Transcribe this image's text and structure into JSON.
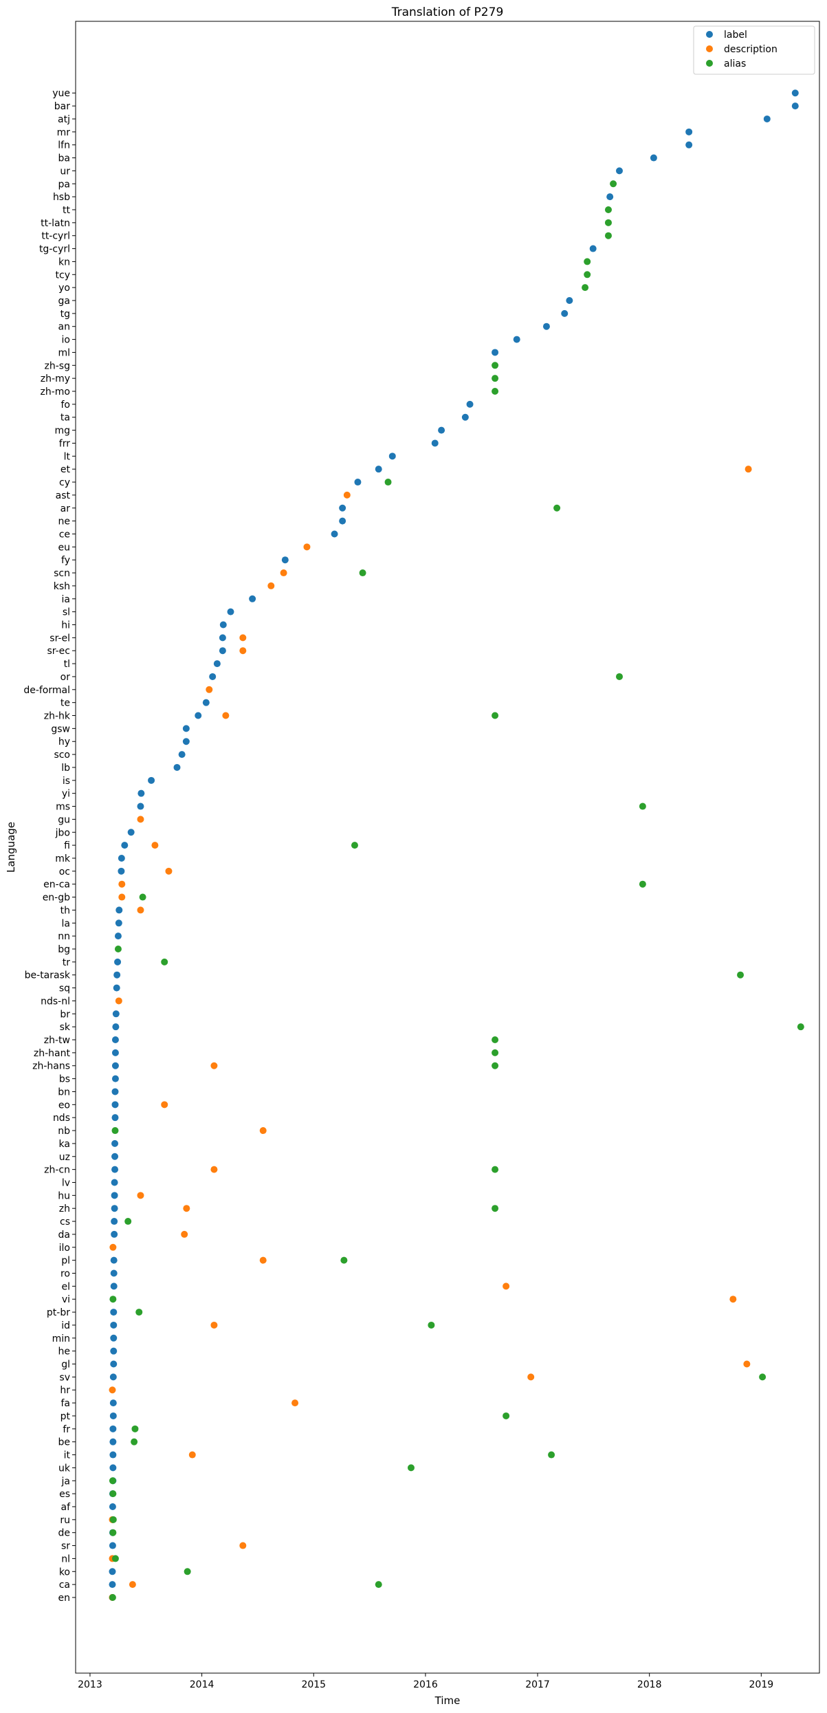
{
  "chart_data": {
    "type": "scatter",
    "title": "Translation of P279",
    "xlabel": "Time",
    "ylabel": "Language",
    "xlim": [
      "2012-11-15",
      "2019-07-10"
    ],
    "x_ticks": [
      "2013",
      "2014",
      "2015",
      "2016",
      "2017",
      "2018",
      "2019"
    ],
    "legend_position": "top-right",
    "grid": false,
    "categories": [
      "en",
      "ca",
      "ko",
      "nl",
      "sr",
      "de",
      "ru",
      "af",
      "es",
      "ja",
      "uk",
      "it",
      "be",
      "fr",
      "pt",
      "fa",
      "hr",
      "sv",
      "gl",
      "he",
      "min",
      "id",
      "pt-br",
      "vi",
      "el",
      "ro",
      "pl",
      "ilo",
      "da",
      "cs",
      "zh",
      "hu",
      "lv",
      "zh-cn",
      "uz",
      "ka",
      "nb",
      "nds",
      "eo",
      "bn",
      "bs",
      "zh-hans",
      "zh-hant",
      "zh-tw",
      "sk",
      "br",
      "nds-nl",
      "sq",
      "be-tarask",
      "tr",
      "bg",
      "nn",
      "la",
      "th",
      "en-gb",
      "en-ca",
      "oc",
      "mk",
      "fi",
      "jbo",
      "gu",
      "ms",
      "yi",
      "is",
      "lb",
      "sco",
      "hy",
      "gsw",
      "zh-hk",
      "te",
      "de-formal",
      "or",
      "tl",
      "sr-ec",
      "sr-el",
      "hi",
      "sl",
      "ia",
      "ksh",
      "scn",
      "fy",
      "eu",
      "ce",
      "ne",
      "ar",
      "ast",
      "cy",
      "et",
      "lt",
      "frr",
      "mg",
      "ta",
      "fo",
      "zh-mo",
      "zh-my",
      "zh-sg",
      "ml",
      "io",
      "an",
      "tg",
      "ga",
      "yo",
      "tcy",
      "kn",
      "tg-cyrl",
      "tt-cyrl",
      "tt-latn",
      "tt",
      "hsb",
      "pa",
      "ur",
      "ba",
      "lfn",
      "mr",
      "atj",
      "bar",
      "yue"
    ],
    "series": [
      {
        "name": "label",
        "color": "#1f77b4",
        "points": [
          [
            "2013-03-15",
            "en"
          ],
          [
            "2013-03-15",
            "ca"
          ],
          [
            "2013-03-15",
            "ko"
          ],
          [
            "2013-03-16",
            "sr"
          ],
          [
            "2013-03-16",
            "de"
          ],
          [
            "2013-03-16",
            "ru"
          ],
          [
            "2013-03-16",
            "af"
          ],
          [
            "2013-03-16",
            "es"
          ],
          [
            "2013-03-17",
            "ja"
          ],
          [
            "2013-03-17",
            "uk"
          ],
          [
            "2013-03-17",
            "it"
          ],
          [
            "2013-03-17",
            "be"
          ],
          [
            "2013-03-17",
            "fr"
          ],
          [
            "2013-03-18",
            "pt"
          ],
          [
            "2013-03-18",
            "fa"
          ],
          [
            "2013-03-18",
            "sv"
          ],
          [
            "2013-03-19",
            "gl"
          ],
          [
            "2013-03-19",
            "he"
          ],
          [
            "2013-03-19",
            "min"
          ],
          [
            "2013-03-19",
            "id"
          ],
          [
            "2013-03-19",
            "pt-br"
          ],
          [
            "2013-03-20",
            "el"
          ],
          [
            "2013-03-20",
            "ro"
          ],
          [
            "2013-03-20",
            "pl"
          ],
          [
            "2013-03-21",
            "da"
          ],
          [
            "2013-03-21",
            "cs"
          ],
          [
            "2013-03-22",
            "zh"
          ],
          [
            "2013-03-22",
            "hu"
          ],
          [
            "2013-03-22",
            "lv"
          ],
          [
            "2013-03-23",
            "zh-cn"
          ],
          [
            "2013-03-23",
            "uz"
          ],
          [
            "2013-03-23",
            "ka"
          ],
          [
            "2013-03-24",
            "nds"
          ],
          [
            "2013-03-24",
            "eo"
          ],
          [
            "2013-03-24",
            "bn"
          ],
          [
            "2013-03-25",
            "bs"
          ],
          [
            "2013-03-25",
            "zh-hans"
          ],
          [
            "2013-03-25",
            "zh-hant"
          ],
          [
            "2013-03-25",
            "zh-tw"
          ],
          [
            "2013-03-26",
            "sk"
          ],
          [
            "2013-03-27",
            "br"
          ],
          [
            "2013-03-29",
            "sq"
          ],
          [
            "2013-03-30",
            "be-tarask"
          ],
          [
            "2013-04-01",
            "tr"
          ],
          [
            "2013-04-03",
            "nn"
          ],
          [
            "2013-04-05",
            "la"
          ],
          [
            "2013-04-06",
            "th"
          ],
          [
            "2013-04-14",
            "mk"
          ],
          [
            "2013-04-13",
            "oc"
          ],
          [
            "2013-04-24",
            "fi"
          ],
          [
            "2013-05-15",
            "jbo"
          ],
          [
            "2013-06-15",
            "ms"
          ],
          [
            "2013-06-17",
            "yi"
          ],
          [
            "2013-07-20",
            "is"
          ],
          [
            "2013-10-12",
            "lb"
          ],
          [
            "2013-10-28",
            "sco"
          ],
          [
            "2013-11-11",
            "hy"
          ],
          [
            "2013-11-11",
            "gsw"
          ],
          [
            "2013-12-20",
            "zh-hk"
          ],
          [
            "2014-01-15",
            "te"
          ],
          [
            "2014-02-05",
            "or"
          ],
          [
            "2014-02-20",
            "tl"
          ],
          [
            "2014-03-10",
            "sr-ec"
          ],
          [
            "2014-03-10",
            "sr-el"
          ],
          [
            "2014-03-12",
            "hi"
          ],
          [
            "2014-04-05",
            "sl"
          ],
          [
            "2014-06-15",
            "ia"
          ],
          [
            "2014-09-30",
            "fy"
          ],
          [
            "2015-03-10",
            "ce"
          ],
          [
            "2015-04-05",
            "ne"
          ],
          [
            "2015-04-05",
            "ar"
          ],
          [
            "2015-05-25",
            "cy"
          ],
          [
            "2015-08-01",
            "et"
          ],
          [
            "2015-09-15",
            "lt"
          ],
          [
            "2016-02-01",
            "frr"
          ],
          [
            "2016-02-22",
            "mg"
          ],
          [
            "2016-05-10",
            "ta"
          ],
          [
            "2016-05-25",
            "fo"
          ],
          [
            "2016-08-15",
            "ml"
          ],
          [
            "2016-10-25",
            "io"
          ],
          [
            "2017-01-30",
            "an"
          ],
          [
            "2017-03-30",
            "tg"
          ],
          [
            "2017-04-15",
            "ga"
          ],
          [
            "2017-07-01",
            "tg-cyrl"
          ],
          [
            "2017-08-25",
            "hsb"
          ],
          [
            "2017-09-25",
            "ur"
          ],
          [
            "2018-01-15",
            "ba"
          ],
          [
            "2018-05-10",
            "lfn"
          ],
          [
            "2018-05-10",
            "mr"
          ],
          [
            "2019-01-20",
            "atj"
          ],
          [
            "2019-04-22",
            "bar"
          ],
          [
            "2019-04-22",
            "yue"
          ]
        ]
      },
      {
        "name": "description",
        "color": "#ff7f0e",
        "points": [
          [
            "2013-03-15",
            "en"
          ],
          [
            "2013-05-20",
            "ca"
          ],
          [
            "2013-03-15",
            "nl"
          ],
          [
            "2014-05-15",
            "sr"
          ],
          [
            "2013-03-15",
            "ru"
          ],
          [
            "2013-12-01",
            "it"
          ],
          [
            "2014-11-01",
            "fa"
          ],
          [
            "2013-03-15",
            "hr"
          ],
          [
            "2016-12-10",
            "sv"
          ],
          [
            "2018-11-15",
            "gl"
          ],
          [
            "2014-02-10",
            "id"
          ],
          [
            "2018-10-01",
            "vi"
          ],
          [
            "2016-09-20",
            "el"
          ],
          [
            "2014-07-20",
            "pl"
          ],
          [
            "2013-03-17",
            "ilo"
          ],
          [
            "2013-11-05",
            "da"
          ],
          [
            "2013-11-12",
            "zh"
          ],
          [
            "2013-06-15",
            "hu"
          ],
          [
            "2014-02-10",
            "zh-cn"
          ],
          [
            "2014-07-20",
            "nb"
          ],
          [
            "2013-09-01",
            "eo"
          ],
          [
            "2014-02-10",
            "zh-hans"
          ],
          [
            "2013-04-05",
            "nds-nl"
          ],
          [
            "2013-06-15",
            "th"
          ],
          [
            "2013-04-15",
            "en-gb"
          ],
          [
            "2013-04-15",
            "en-ca"
          ],
          [
            "2013-09-15",
            "oc"
          ],
          [
            "2013-08-01",
            "fi"
          ],
          [
            "2013-06-15",
            "gu"
          ],
          [
            "2014-03-20",
            "zh-hk"
          ],
          [
            "2014-01-25",
            "de-formal"
          ],
          [
            "2014-05-15",
            "sr-ec"
          ],
          [
            "2014-05-15",
            "sr-el"
          ],
          [
            "2014-08-15",
            "ksh"
          ],
          [
            "2014-09-25",
            "scn"
          ],
          [
            "2014-12-10",
            "eu"
          ],
          [
            "2015-04-20",
            "ast"
          ],
          [
            "2018-11-20",
            "et"
          ]
        ]
      },
      {
        "name": "alias",
        "color": "#2ca02c",
        "points": [
          [
            "2013-03-16",
            "en"
          ],
          [
            "2015-08-01",
            "ca"
          ],
          [
            "2013-11-15",
            "ko"
          ],
          [
            "2013-03-25",
            "nl"
          ],
          [
            "2013-03-17",
            "de"
          ],
          [
            "2013-03-18",
            "ru"
          ],
          [
            "2013-03-17",
            "es"
          ],
          [
            "2013-03-16",
            "ja"
          ],
          [
            "2015-11-15",
            "uk"
          ],
          [
            "2017-02-15",
            "it"
          ],
          [
            "2013-05-25",
            "be"
          ],
          [
            "2013-05-28",
            "fr"
          ],
          [
            "2016-09-20",
            "pt"
          ],
          [
            "2019-01-05",
            "sv"
          ],
          [
            "2016-01-20",
            "id"
          ],
          [
            "2013-06-10",
            "pt-br"
          ],
          [
            "2013-03-17",
            "vi"
          ],
          [
            "2015-04-10",
            "pl"
          ],
          [
            "2013-05-05",
            "cs"
          ],
          [
            "2016-08-15",
            "zh"
          ],
          [
            "2016-08-15",
            "zh-cn"
          ],
          [
            "2013-03-24",
            "nb"
          ],
          [
            "2016-08-15",
            "zh-hans"
          ],
          [
            "2016-08-15",
            "zh-hant"
          ],
          [
            "2016-08-15",
            "zh-tw"
          ],
          [
            "2019-05-10",
            "sk"
          ],
          [
            "2018-10-25",
            "be-tarask"
          ],
          [
            "2013-09-01",
            "tr"
          ],
          [
            "2013-04-03",
            "bg"
          ],
          [
            "2013-06-22",
            "en-gb"
          ],
          [
            "2017-12-10",
            "en-ca"
          ],
          [
            "2015-05-15",
            "fi"
          ],
          [
            "2017-12-10",
            "ms"
          ],
          [
            "2016-08-15",
            "zh-hk"
          ],
          [
            "2017-09-25",
            "or"
          ],
          [
            "2015-06-10",
            "scn"
          ],
          [
            "2017-03-05",
            "ar"
          ],
          [
            "2015-09-01",
            "cy"
          ],
          [
            "2016-08-15",
            "zh-mo"
          ],
          [
            "2016-08-15",
            "zh-my"
          ],
          [
            "2016-08-15",
            "zh-sg"
          ],
          [
            "2017-06-05",
            "yo"
          ],
          [
            "2017-06-12",
            "tcy"
          ],
          [
            "2017-06-12",
            "kn"
          ],
          [
            "2017-08-20",
            "tt-cyrl"
          ],
          [
            "2017-08-20",
            "tt-latn"
          ],
          [
            "2017-08-20",
            "tt"
          ],
          [
            "2017-09-05",
            "pa"
          ]
        ]
      }
    ]
  }
}
